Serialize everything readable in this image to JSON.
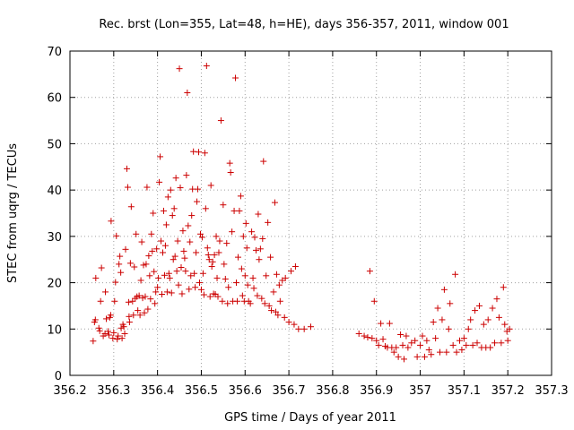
{
  "chart_data": {
    "type": "scatter",
    "title": "Rec. brst (Lon=355, Lat=48, h=HE), days 356-357, 2011, window 001",
    "xlabel": "GPS time / Days of year 2011",
    "ylabel": "STEC from uqrg / TECUs",
    "xlim": [
      356.2,
      357.3
    ],
    "ylim": [
      0,
      70
    ],
    "xticks": [
      356.2,
      356.3,
      356.4,
      356.5,
      356.6,
      356.7,
      356.8,
      356.9,
      357,
      357.1,
      357.2,
      357.3
    ],
    "xtick_labels": [
      "356.2",
      "356.3",
      "356.4",
      "356.5",
      "356.6",
      "356.7",
      "356.8",
      "356.9",
      "357",
      "357.1",
      "357.2",
      "357.3"
    ],
    "yticks": [
      0,
      10,
      20,
      30,
      40,
      50,
      60,
      70
    ],
    "ytick_labels": [
      "0",
      "10",
      "20",
      "30",
      "40",
      "50",
      "60",
      "70"
    ],
    "grid": true,
    "legend": "none",
    "marker": "plus",
    "color": "#cc0000",
    "points": [
      [
        356.253,
        7.4
      ],
      [
        356.256,
        11.5
      ],
      [
        356.258,
        12.0
      ],
      [
        356.259,
        21.0
      ],
      [
        356.266,
        10.2
      ],
      [
        356.268,
        9.6
      ],
      [
        356.27,
        16.0
      ],
      [
        356.272,
        23.2
      ],
      [
        356.276,
        8.5
      ],
      [
        356.28,
        9.0
      ],
      [
        356.281,
        18.0
      ],
      [
        356.283,
        12.2
      ],
      [
        356.287,
        9.5
      ],
      [
        356.289,
        8.7
      ],
      [
        356.291,
        12.5
      ],
      [
        356.293,
        13.0
      ],
      [
        356.294,
        33.3
      ],
      [
        356.298,
        8.0
      ],
      [
        356.3,
        9.2
      ],
      [
        356.302,
        16.0
      ],
      [
        356.304,
        20.1
      ],
      [
        356.306,
        30.1
      ],
      [
        356.308,
        7.8
      ],
      [
        356.31,
        8.5
      ],
      [
        356.312,
        24.0
      ],
      [
        356.314,
        25.7
      ],
      [
        356.316,
        22.2
      ],
      [
        356.317,
        10.2
      ],
      [
        356.319,
        8.0
      ],
      [
        356.321,
        11.0
      ],
      [
        356.323,
        10.5
      ],
      [
        356.325,
        9.0
      ],
      [
        356.327,
        27.2
      ],
      [
        356.33,
        44.6
      ],
      [
        356.332,
        40.6
      ],
      [
        356.334,
        15.8
      ],
      [
        356.335,
        12.7
      ],
      [
        356.336,
        11.5
      ],
      [
        356.338,
        24.2
      ],
      [
        356.34,
        36.4
      ],
      [
        356.343,
        16.0
      ],
      [
        356.345,
        13.0
      ],
      [
        356.347,
        23.4
      ],
      [
        356.349,
        16.6
      ],
      [
        356.351,
        30.5
      ],
      [
        356.353,
        17.0
      ],
      [
        356.355,
        14.0
      ],
      [
        356.358,
        17.2
      ],
      [
        356.36,
        13.0
      ],
      [
        356.362,
        20.5
      ],
      [
        356.364,
        28.8
      ],
      [
        356.366,
        16.7
      ],
      [
        356.368,
        23.8
      ],
      [
        356.37,
        13.5
      ],
      [
        356.372,
        17.0
      ],
      [
        356.374,
        24.0
      ],
      [
        356.376,
        40.6
      ],
      [
        356.378,
        14.3
      ],
      [
        356.38,
        25.8
      ],
      [
        356.382,
        21.5
      ],
      [
        356.384,
        16.5
      ],
      [
        356.386,
        30.5
      ],
      [
        356.388,
        26.8
      ],
      [
        356.39,
        35.0
      ],
      [
        356.392,
        22.4
      ],
      [
        356.394,
        15.5
      ],
      [
        356.396,
        18.0
      ],
      [
        356.398,
        27.3
      ],
      [
        356.4,
        19.0
      ],
      [
        356.402,
        21.0
      ],
      [
        356.404,
        41.7
      ],
      [
        356.406,
        47.2
      ],
      [
        356.408,
        29.0
      ],
      [
        356.41,
        17.5
      ],
      [
        356.412,
        26.5
      ],
      [
        356.414,
        35.5
      ],
      [
        356.416,
        21.6
      ],
      [
        356.418,
        28.0
      ],
      [
        356.42,
        32.5
      ],
      [
        356.422,
        18.0
      ],
      [
        356.424,
        38.5
      ],
      [
        356.426,
        22.0
      ],
      [
        356.428,
        21.0
      ],
      [
        356.43,
        40.0
      ],
      [
        356.432,
        17.8
      ],
      [
        356.434,
        34.5
      ],
      [
        356.436,
        25.0
      ],
      [
        356.438,
        36.0
      ],
      [
        356.44,
        25.7
      ],
      [
        356.442,
        42.6
      ],
      [
        356.444,
        22.5
      ],
      [
        356.446,
        29.0
      ],
      [
        356.448,
        19.5
      ],
      [
        356.45,
        66.2
      ],
      [
        356.452,
        40.5
      ],
      [
        356.454,
        23.3
      ],
      [
        356.456,
        17.6
      ],
      [
        356.458,
        31.2
      ],
      [
        356.46,
        26.8
      ],
      [
        356.462,
        25.3
      ],
      [
        356.464,
        22.5
      ],
      [
        356.466,
        43.2
      ],
      [
        356.468,
        61.0
      ],
      [
        356.47,
        32.3
      ],
      [
        356.472,
        18.6
      ],
      [
        356.474,
        28.8
      ],
      [
        356.476,
        21.5
      ],
      [
        356.478,
        34.5
      ],
      [
        356.48,
        40.2
      ],
      [
        356.482,
        48.3
      ],
      [
        356.484,
        22.0
      ],
      [
        356.486,
        19.0
      ],
      [
        356.488,
        26.5
      ],
      [
        356.49,
        37.5
      ],
      [
        356.492,
        40.2
      ],
      [
        356.494,
        48.2
      ],
      [
        356.496,
        20.0
      ],
      [
        356.498,
        30.5
      ],
      [
        356.5,
        18.5
      ],
      [
        356.502,
        29.8
      ],
      [
        356.504,
        22.0
      ],
      [
        356.506,
        17.4
      ],
      [
        356.508,
        48.0
      ],
      [
        356.51,
        36.0
      ],
      [
        356.512,
        66.8
      ],
      [
        356.514,
        27.5
      ],
      [
        356.516,
        26.0
      ],
      [
        356.518,
        25.0
      ],
      [
        356.52,
        17.0
      ],
      [
        356.522,
        41.0
      ],
      [
        356.524,
        23.5
      ],
      [
        356.526,
        24.5
      ],
      [
        356.528,
        17.6
      ],
      [
        356.53,
        26.0
      ],
      [
        356.532,
        17.5
      ],
      [
        356.534,
        30.0
      ],
      [
        356.536,
        21.0
      ],
      [
        356.538,
        17.0
      ],
      [
        356.54,
        26.5
      ],
      [
        356.542,
        29.0
      ],
      [
        356.545,
        55.0
      ],
      [
        356.548,
        16.0
      ],
      [
        356.55,
        36.8
      ],
      [
        356.552,
        24.0
      ],
      [
        356.555,
        20.8
      ],
      [
        356.558,
        28.5
      ],
      [
        356.56,
        15.5
      ],
      [
        356.562,
        19.0
      ],
      [
        356.565,
        45.8
      ],
      [
        356.567,
        43.8
      ],
      [
        356.57,
        31.0
      ],
      [
        356.572,
        16.0
      ],
      [
        356.575,
        35.5
      ],
      [
        356.578,
        64.2
      ],
      [
        356.58,
        20.0
      ],
      [
        356.582,
        16.0
      ],
      [
        356.584,
        25.5
      ],
      [
        356.587,
        35.5
      ],
      [
        356.59,
        38.7
      ],
      [
        356.592,
        23.0
      ],
      [
        356.594,
        17.2
      ],
      [
        356.596,
        30.0
      ],
      [
        356.598,
        16.0
      ],
      [
        356.6,
        21.5
      ],
      [
        356.602,
        32.8
      ],
      [
        356.604,
        27.5
      ],
      [
        356.606,
        19.5
      ],
      [
        356.608,
        16.0
      ],
      [
        356.612,
        15.5
      ],
      [
        356.615,
        31.0
      ],
      [
        356.618,
        21.0
      ],
      [
        356.62,
        18.8
      ],
      [
        356.622,
        29.8
      ],
      [
        356.625,
        27.0
      ],
      [
        356.628,
        17.2
      ],
      [
        356.63,
        34.8
      ],
      [
        356.632,
        25.0
      ],
      [
        356.635,
        27.3
      ],
      [
        356.638,
        16.6
      ],
      [
        356.64,
        29.5
      ],
      [
        356.642,
        46.2
      ],
      [
        356.645,
        15.5
      ],
      [
        356.648,
        21.5
      ],
      [
        356.652,
        33.0
      ],
      [
        356.655,
        15.0
      ],
      [
        356.658,
        25.5
      ],
      [
        356.66,
        14.0
      ],
      [
        356.665,
        18.0
      ],
      [
        356.668,
        37.3
      ],
      [
        356.67,
        13.7
      ],
      [
        356.672,
        21.8
      ],
      [
        356.675,
        13.0
      ],
      [
        356.678,
        19.5
      ],
      [
        356.68,
        16.0
      ],
      [
        356.685,
        20.5
      ],
      [
        356.69,
        12.5
      ],
      [
        356.692,
        21.0
      ],
      [
        356.7,
        11.5
      ],
      [
        356.705,
        22.5
      ],
      [
        356.712,
        11.0
      ],
      [
        356.715,
        23.5
      ],
      [
        356.722,
        10.0
      ],
      [
        356.735,
        10.0
      ],
      [
        356.75,
        10.5
      ],
      [
        356.86,
        9.0
      ],
      [
        356.872,
        8.5
      ],
      [
        356.88,
        8.2
      ],
      [
        356.885,
        22.5
      ],
      [
        356.89,
        8.0
      ],
      [
        356.895,
        16.0
      ],
      [
        356.9,
        7.5
      ],
      [
        356.905,
        6.5
      ],
      [
        356.91,
        11.2
      ],
      [
        356.915,
        7.8
      ],
      [
        356.92,
        6.3
      ],
      [
        356.925,
        6.0
      ],
      [
        356.93,
        11.2
      ],
      [
        356.935,
        6.0
      ],
      [
        356.94,
        5.0
      ],
      [
        356.945,
        6.0
      ],
      [
        356.95,
        4.0
      ],
      [
        356.955,
        8.8
      ],
      [
        356.96,
        6.5
      ],
      [
        356.963,
        3.5
      ],
      [
        356.968,
        8.5
      ],
      [
        356.972,
        6.0
      ],
      [
        356.98,
        7.0
      ],
      [
        356.988,
        7.5
      ],
      [
        356.993,
        4.0
      ],
      [
        357.0,
        6.5
      ],
      [
        357.005,
        8.5
      ],
      [
        357.01,
        4.0
      ],
      [
        357.015,
        7.5
      ],
      [
        357.02,
        5.5
      ],
      [
        357.025,
        4.5
      ],
      [
        357.03,
        11.5
      ],
      [
        357.035,
        8.0
      ],
      [
        357.04,
        14.5
      ],
      [
        357.045,
        5.0
      ],
      [
        357.05,
        12.0
      ],
      [
        357.055,
        18.5
      ],
      [
        357.06,
        5.0
      ],
      [
        357.065,
        10.0
      ],
      [
        357.068,
        15.5
      ],
      [
        357.075,
        6.5
      ],
      [
        357.08,
        21.8
      ],
      [
        357.083,
        5.0
      ],
      [
        357.09,
        7.5
      ],
      [
        357.095,
        5.5
      ],
      [
        357.1,
        8.0
      ],
      [
        357.105,
        6.5
      ],
      [
        357.11,
        10.0
      ],
      [
        357.115,
        12.0
      ],
      [
        357.12,
        6.5
      ],
      [
        357.125,
        14.0
      ],
      [
        357.13,
        7.0
      ],
      [
        357.135,
        15.0
      ],
      [
        357.14,
        6.0
      ],
      [
        357.145,
        11.0
      ],
      [
        357.15,
        6.0
      ],
      [
        357.155,
        12.0
      ],
      [
        357.16,
        6.0
      ],
      [
        357.165,
        14.5
      ],
      [
        357.17,
        7.0
      ],
      [
        357.175,
        16.5
      ],
      [
        357.18,
        12.5
      ],
      [
        357.185,
        7.0
      ],
      [
        357.19,
        19.0
      ],
      [
        357.193,
        11.0
      ],
      [
        357.198,
        9.5
      ],
      [
        357.2,
        7.5
      ],
      [
        357.204,
        10.0
      ]
    ]
  }
}
